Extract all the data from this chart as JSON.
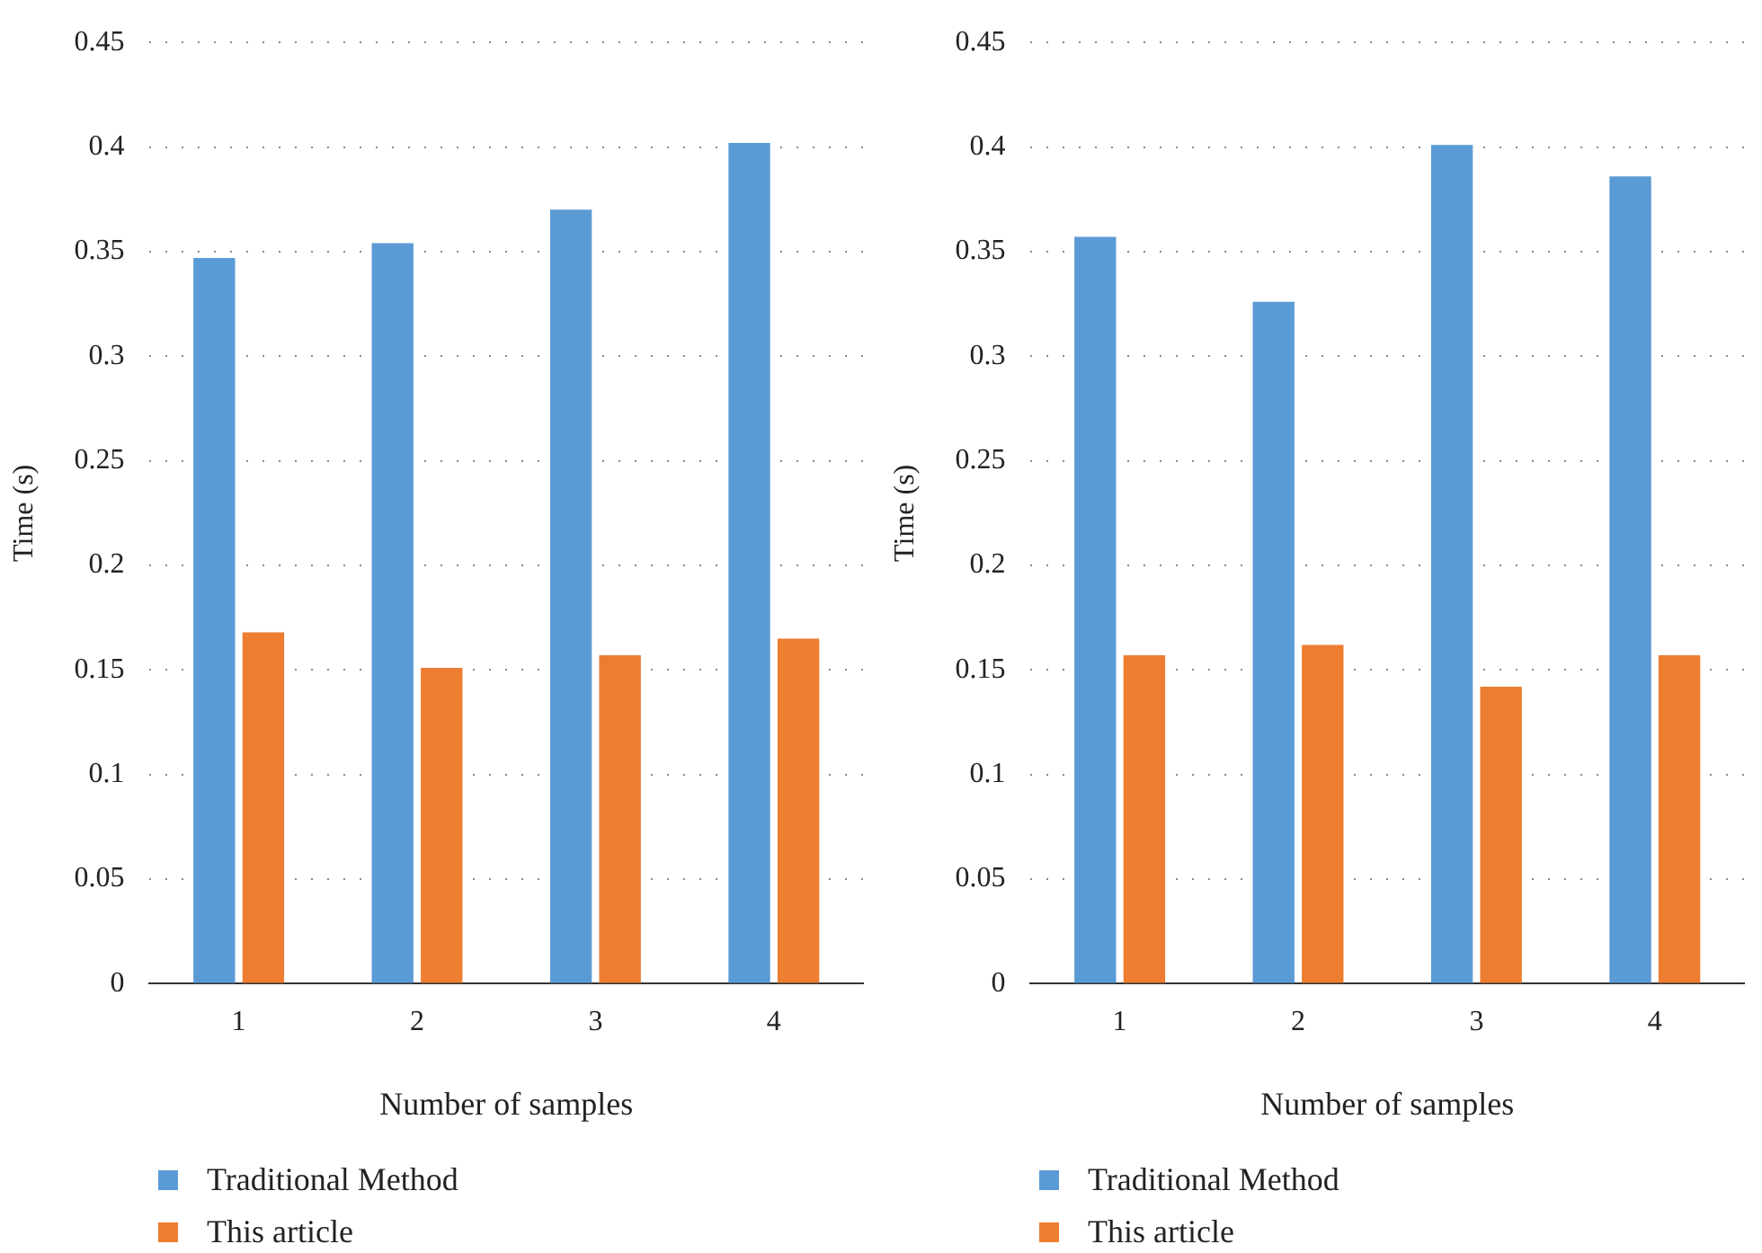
{
  "chart_data": [
    {
      "type": "bar",
      "categories": [
        "1",
        "2",
        "3",
        "4"
      ],
      "xlabel": "Number of samples",
      "ylabel": "Time (s)",
      "ylim": [
        0,
        0.45
      ],
      "yticks": [
        0,
        0.05,
        0.1,
        0.15,
        0.2,
        0.25,
        0.3,
        0.35,
        0.4,
        0.45
      ],
      "grid": "y",
      "legend": "bottom left",
      "series": [
        {
          "name": "Traditional Method",
          "color": "#5b9bd5",
          "values": [
            0.347,
            0.354,
            0.37,
            0.402
          ]
        },
        {
          "name": "This article",
          "color": "#ed7d31",
          "values": [
            0.168,
            0.151,
            0.157,
            0.165
          ]
        }
      ]
    },
    {
      "type": "bar",
      "categories": [
        "1",
        "2",
        "3",
        "4"
      ],
      "xlabel": "Number of samples",
      "ylabel": "Time (s)",
      "ylim": [
        0,
        0.45
      ],
      "yticks": [
        0,
        0.05,
        0.1,
        0.15,
        0.2,
        0.25,
        0.3,
        0.35,
        0.4,
        0.45
      ],
      "grid": "y",
      "legend": "bottom left",
      "series": [
        {
          "name": "Traditional Method",
          "color": "#5b9bd5",
          "values": [
            0.357,
            0.326,
            0.401,
            0.386
          ]
        },
        {
          "name": "This article",
          "color": "#ed7d31",
          "values": [
            0.157,
            0.162,
            0.142,
            0.157
          ]
        }
      ]
    }
  ]
}
